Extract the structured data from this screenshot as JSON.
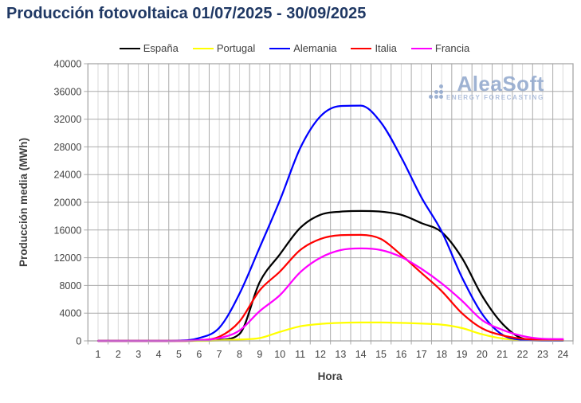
{
  "title": "Producción fotovoltaica 01/07/2025 - 30/09/2025",
  "watermark": {
    "name": "AleaSoft",
    "tagline": "ENERGY FORECASTING"
  },
  "colors": {
    "title": "#1F3864",
    "axis_text": "#444444",
    "grid_major": "#ABABAB",
    "grid_minor": "#D9D9D9",
    "plot_border": "#A0A0A0",
    "watermark": "#8FA6CC"
  },
  "chart_data": {
    "type": "line",
    "title": "Producción fotovoltaica 01/07/2025 - 30/09/2025",
    "xlabel": "Hora",
    "ylabel": "Producción media (MWh)",
    "x": [
      1,
      2,
      3,
      4,
      5,
      6,
      7,
      8,
      9,
      10,
      11,
      12,
      13,
      14,
      15,
      16,
      17,
      18,
      19,
      20,
      21,
      22,
      23,
      24
    ],
    "ylim": [
      0,
      40000
    ],
    "ytick_step": 4000,
    "grid": "horizontal major every 4000; vertical lines every half hour (hour boundaries darker)",
    "legend_position": "top-center",
    "series": [
      {
        "name": "España",
        "color": "#000000",
        "values": [
          0,
          0,
          0,
          0,
          0,
          30,
          150,
          1000,
          8500,
          12500,
          16300,
          18200,
          18650,
          18750,
          18650,
          18200,
          17000,
          15700,
          12000,
          6500,
          2500,
          350,
          80,
          40
        ]
      },
      {
        "name": "Portugal",
        "color": "#FFFF00",
        "values": [
          0,
          0,
          0,
          0,
          0,
          0,
          60,
          200,
          400,
          1300,
          2100,
          2450,
          2600,
          2650,
          2650,
          2600,
          2500,
          2350,
          1850,
          950,
          350,
          120,
          50,
          30
        ]
      },
      {
        "name": "Alemania",
        "color": "#0000FF",
        "values": [
          0,
          0,
          0,
          0,
          30,
          400,
          1900,
          6800,
          13500,
          20300,
          27800,
          32400,
          33900,
          33950,
          31500,
          26500,
          20700,
          15800,
          9200,
          3900,
          900,
          150,
          40,
          20
        ]
      },
      {
        "name": "Italia",
        "color": "#FF0000",
        "values": [
          0,
          0,
          0,
          0,
          0,
          100,
          600,
          2800,
          7300,
          10000,
          13100,
          14700,
          15250,
          15300,
          14700,
          12400,
          9800,
          7200,
          4000,
          1800,
          800,
          300,
          150,
          120
        ]
      },
      {
        "name": "Francia",
        "color": "#FF00FF",
        "values": [
          0,
          0,
          0,
          0,
          0,
          100,
          400,
          1500,
          4300,
          6600,
          9900,
          12000,
          13100,
          13350,
          13100,
          12100,
          10400,
          8300,
          5800,
          3000,
          1600,
          700,
          300,
          250
        ]
      }
    ]
  }
}
